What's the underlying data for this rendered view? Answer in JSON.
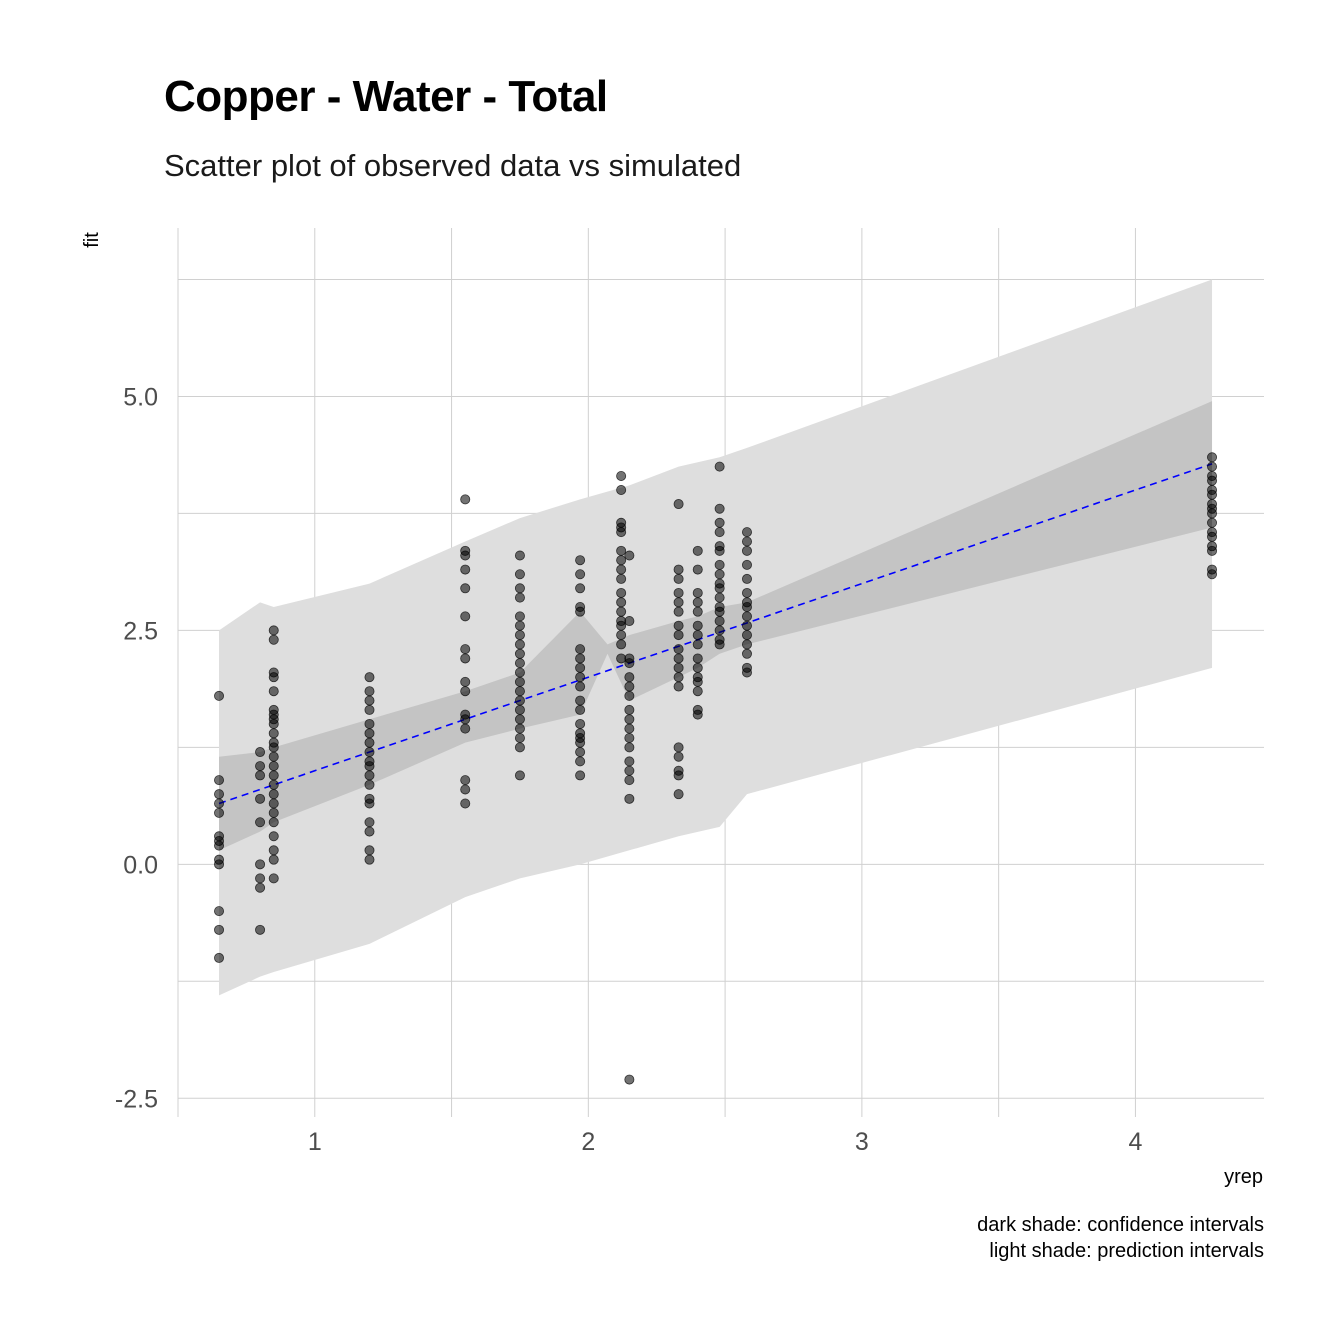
{
  "chart_data": {
    "type": "scatter",
    "title": "Copper - Water - Total",
    "subtitle": "Scatter plot of observed data vs simulated",
    "xlabel": "yrep",
    "ylabel": "fit",
    "xlim": [
      0.5,
      4.47
    ],
    "ylim": [
      -2.7,
      6.8
    ],
    "x_ticks": [
      1,
      2,
      3,
      4
    ],
    "y_ticks": [
      -2.5,
      0,
      2.5,
      5
    ],
    "x_tick_labels": [
      "1",
      "2",
      "3",
      "4"
    ],
    "y_tick_labels": [
      "-2.5",
      "0.0",
      "2.5",
      "5.0"
    ],
    "grid": true,
    "caption": [
      "dark shade: confidence intervals",
      "light shade: prediction intervals"
    ],
    "colors": {
      "points": "#000000",
      "trend_line": "#0000ff",
      "confidence_band": "#c4c4c4",
      "prediction_band": "#dedede",
      "grid": "#d0d0d0"
    },
    "trend_line": {
      "style": "dashed",
      "x": [
        0.65,
        4.28
      ],
      "y": [
        0.65,
        4.28
      ]
    },
    "confidence_band": {
      "x": [
        0.65,
        0.8,
        0.85,
        1.2,
        1.55,
        1.75,
        1.97,
        2.07,
        2.15,
        2.33,
        2.4,
        2.48,
        2.58,
        4.28
      ],
      "lower": [
        0.15,
        0.35,
        0.45,
        0.85,
        1.3,
        1.45,
        1.6,
        2.25,
        1.75,
        2.0,
        2.1,
        2.25,
        2.35,
        3.6
      ],
      "upper": [
        1.15,
        1.2,
        1.25,
        1.55,
        1.85,
        2.05,
        2.7,
        2.35,
        2.45,
        2.6,
        2.65,
        2.75,
        2.8,
        4.95
      ]
    },
    "prediction_band": {
      "x": [
        0.65,
        0.8,
        0.85,
        1.2,
        1.55,
        1.75,
        1.97,
        2.15,
        2.33,
        2.48,
        2.58,
        4.28
      ],
      "lower": [
        -1.4,
        -1.2,
        -1.15,
        -0.85,
        -0.35,
        -0.15,
        0.0,
        0.15,
        0.3,
        0.4,
        0.75,
        2.1
      ],
      "upper": [
        2.5,
        2.8,
        2.75,
        3.0,
        3.45,
        3.7,
        3.9,
        4.05,
        4.25,
        4.35,
        4.45,
        6.25
      ]
    },
    "series": [
      {
        "points": [
          [
            0.65,
            1.8
          ],
          [
            0.65,
            0.9
          ],
          [
            0.65,
            0.75
          ],
          [
            0.65,
            0.65
          ],
          [
            0.65,
            0.55
          ],
          [
            0.65,
            0.3
          ],
          [
            0.65,
            0.25
          ],
          [
            0.65,
            0.2
          ],
          [
            0.65,
            0.05
          ],
          [
            0.65,
            0.0
          ],
          [
            0.65,
            -0.5
          ],
          [
            0.65,
            -0.7
          ],
          [
            0.65,
            -1.0
          ],
          [
            0.8,
            1.2
          ],
          [
            0.8,
            1.05
          ],
          [
            0.8,
            0.95
          ],
          [
            0.8,
            0.7
          ],
          [
            0.8,
            0.45
          ],
          [
            0.8,
            0.0
          ],
          [
            0.8,
            -0.15
          ],
          [
            0.8,
            -0.25
          ],
          [
            0.8,
            -0.7
          ],
          [
            0.85,
            2.5
          ],
          [
            0.85,
            2.4
          ],
          [
            0.85,
            2.05
          ],
          [
            0.85,
            2.0
          ],
          [
            0.85,
            1.85
          ],
          [
            0.85,
            1.65
          ],
          [
            0.85,
            1.6
          ],
          [
            0.85,
            1.55
          ],
          [
            0.85,
            1.5
          ],
          [
            0.85,
            1.4
          ],
          [
            0.85,
            1.3
          ],
          [
            0.85,
            1.25
          ],
          [
            0.85,
            1.15
          ],
          [
            0.85,
            1.05
          ],
          [
            0.85,
            0.95
          ],
          [
            0.85,
            0.85
          ],
          [
            0.85,
            0.75
          ],
          [
            0.85,
            0.65
          ],
          [
            0.85,
            0.55
          ],
          [
            0.85,
            0.45
          ],
          [
            0.85,
            0.3
          ],
          [
            0.85,
            0.15
          ],
          [
            0.85,
            0.05
          ],
          [
            0.85,
            -0.15
          ],
          [
            1.2,
            2.0
          ],
          [
            1.2,
            1.85
          ],
          [
            1.2,
            1.75
          ],
          [
            1.2,
            1.65
          ],
          [
            1.2,
            1.5
          ],
          [
            1.2,
            1.4
          ],
          [
            1.2,
            1.3
          ],
          [
            1.2,
            1.2
          ],
          [
            1.2,
            1.1
          ],
          [
            1.2,
            1.05
          ],
          [
            1.2,
            0.95
          ],
          [
            1.2,
            0.85
          ],
          [
            1.2,
            0.7
          ],
          [
            1.2,
            0.65
          ],
          [
            1.2,
            0.45
          ],
          [
            1.2,
            0.35
          ],
          [
            1.2,
            0.15
          ],
          [
            1.2,
            0.05
          ],
          [
            1.55,
            3.9
          ],
          [
            1.55,
            3.35
          ],
          [
            1.55,
            3.3
          ],
          [
            1.55,
            3.15
          ],
          [
            1.55,
            2.95
          ],
          [
            1.55,
            2.65
          ],
          [
            1.55,
            2.3
          ],
          [
            1.55,
            2.2
          ],
          [
            1.55,
            1.95
          ],
          [
            1.55,
            1.85
          ],
          [
            1.55,
            1.6
          ],
          [
            1.55,
            1.55
          ],
          [
            1.55,
            1.45
          ],
          [
            1.55,
            0.9
          ],
          [
            1.55,
            0.8
          ],
          [
            1.55,
            0.65
          ],
          [
            1.75,
            3.3
          ],
          [
            1.75,
            3.1
          ],
          [
            1.75,
            2.95
          ],
          [
            1.75,
            2.85
          ],
          [
            1.75,
            2.65
          ],
          [
            1.75,
            2.55
          ],
          [
            1.75,
            2.45
          ],
          [
            1.75,
            2.35
          ],
          [
            1.75,
            2.25
          ],
          [
            1.75,
            2.15
          ],
          [
            1.75,
            2.05
          ],
          [
            1.75,
            1.95
          ],
          [
            1.75,
            1.85
          ],
          [
            1.75,
            1.75
          ],
          [
            1.75,
            1.65
          ],
          [
            1.75,
            1.55
          ],
          [
            1.75,
            1.45
          ],
          [
            1.75,
            1.35
          ],
          [
            1.75,
            1.25
          ],
          [
            1.75,
            0.95
          ],
          [
            1.97,
            3.25
          ],
          [
            1.97,
            3.1
          ],
          [
            1.97,
            2.95
          ],
          [
            1.97,
            2.75
          ],
          [
            1.97,
            2.7
          ],
          [
            1.97,
            2.3
          ],
          [
            1.97,
            2.2
          ],
          [
            1.97,
            2.1
          ],
          [
            1.97,
            2.0
          ],
          [
            1.97,
            1.9
          ],
          [
            1.97,
            1.75
          ],
          [
            1.97,
            1.65
          ],
          [
            1.97,
            1.5
          ],
          [
            1.97,
            1.4
          ],
          [
            1.97,
            1.35
          ],
          [
            1.97,
            1.3
          ],
          [
            1.97,
            1.2
          ],
          [
            1.97,
            1.1
          ],
          [
            1.97,
            0.95
          ],
          [
            2.12,
            4.15
          ],
          [
            2.12,
            4.0
          ],
          [
            2.12,
            3.65
          ],
          [
            2.12,
            3.6
          ],
          [
            2.12,
            3.55
          ],
          [
            2.12,
            3.35
          ],
          [
            2.12,
            3.25
          ],
          [
            2.12,
            3.15
          ],
          [
            2.12,
            3.05
          ],
          [
            2.12,
            2.9
          ],
          [
            2.12,
            2.8
          ],
          [
            2.12,
            2.7
          ],
          [
            2.12,
            2.6
          ],
          [
            2.12,
            2.55
          ],
          [
            2.12,
            2.45
          ],
          [
            2.12,
            2.35
          ],
          [
            2.12,
            2.2
          ],
          [
            2.15,
            3.3
          ],
          [
            2.15,
            2.6
          ],
          [
            2.15,
            2.2
          ],
          [
            2.15,
            2.15
          ],
          [
            2.15,
            2.0
          ],
          [
            2.15,
            1.9
          ],
          [
            2.15,
            1.8
          ],
          [
            2.15,
            1.65
          ],
          [
            2.15,
            1.55
          ],
          [
            2.15,
            1.45
          ],
          [
            2.15,
            1.35
          ],
          [
            2.15,
            1.25
          ],
          [
            2.15,
            1.1
          ],
          [
            2.15,
            1.0
          ],
          [
            2.15,
            0.9
          ],
          [
            2.15,
            0.7
          ],
          [
            2.15,
            -2.3
          ],
          [
            2.33,
            3.85
          ],
          [
            2.33,
            3.15
          ],
          [
            2.33,
            3.05
          ],
          [
            2.33,
            2.9
          ],
          [
            2.33,
            2.8
          ],
          [
            2.33,
            2.7
          ],
          [
            2.33,
            2.55
          ],
          [
            2.33,
            2.45
          ],
          [
            2.33,
            2.3
          ],
          [
            2.33,
            2.2
          ],
          [
            2.33,
            2.1
          ],
          [
            2.33,
            2.0
          ],
          [
            2.33,
            1.9
          ],
          [
            2.33,
            1.25
          ],
          [
            2.33,
            1.15
          ],
          [
            2.33,
            1.0
          ],
          [
            2.33,
            0.95
          ],
          [
            2.33,
            0.75
          ],
          [
            2.4,
            3.35
          ],
          [
            2.4,
            3.15
          ],
          [
            2.4,
            2.9
          ],
          [
            2.4,
            2.8
          ],
          [
            2.4,
            2.7
          ],
          [
            2.4,
            2.55
          ],
          [
            2.4,
            2.45
          ],
          [
            2.4,
            2.35
          ],
          [
            2.4,
            2.2
          ],
          [
            2.4,
            2.1
          ],
          [
            2.4,
            2.0
          ],
          [
            2.4,
            1.95
          ],
          [
            2.4,
            1.85
          ],
          [
            2.4,
            1.65
          ],
          [
            2.4,
            1.6
          ],
          [
            2.48,
            4.25
          ],
          [
            2.48,
            3.8
          ],
          [
            2.48,
            3.65
          ],
          [
            2.48,
            3.55
          ],
          [
            2.48,
            3.4
          ],
          [
            2.48,
            3.35
          ],
          [
            2.48,
            3.2
          ],
          [
            2.48,
            3.1
          ],
          [
            2.48,
            3.0
          ],
          [
            2.48,
            2.95
          ],
          [
            2.48,
            2.85
          ],
          [
            2.48,
            2.75
          ],
          [
            2.48,
            2.7
          ],
          [
            2.48,
            2.6
          ],
          [
            2.48,
            2.5
          ],
          [
            2.48,
            2.4
          ],
          [
            2.48,
            2.35
          ],
          [
            2.58,
            3.55
          ],
          [
            2.58,
            3.45
          ],
          [
            2.58,
            3.35
          ],
          [
            2.58,
            3.2
          ],
          [
            2.58,
            3.05
          ],
          [
            2.58,
            2.9
          ],
          [
            2.58,
            2.8
          ],
          [
            2.58,
            2.75
          ],
          [
            2.58,
            2.65
          ],
          [
            2.58,
            2.55
          ],
          [
            2.58,
            2.45
          ],
          [
            2.58,
            2.35
          ],
          [
            2.58,
            2.25
          ],
          [
            2.58,
            2.1
          ],
          [
            2.58,
            2.05
          ],
          [
            4.28,
            4.35
          ],
          [
            4.28,
            4.25
          ],
          [
            4.28,
            4.15
          ],
          [
            4.28,
            4.1
          ],
          [
            4.28,
            4.0
          ],
          [
            4.28,
            3.95
          ],
          [
            4.28,
            3.85
          ],
          [
            4.28,
            3.8
          ],
          [
            4.28,
            3.75
          ],
          [
            4.28,
            3.65
          ],
          [
            4.28,
            3.55
          ],
          [
            4.28,
            3.5
          ],
          [
            4.28,
            3.4
          ],
          [
            4.28,
            3.35
          ],
          [
            4.28,
            3.15
          ],
          [
            4.28,
            3.1
          ]
        ]
      }
    ]
  }
}
